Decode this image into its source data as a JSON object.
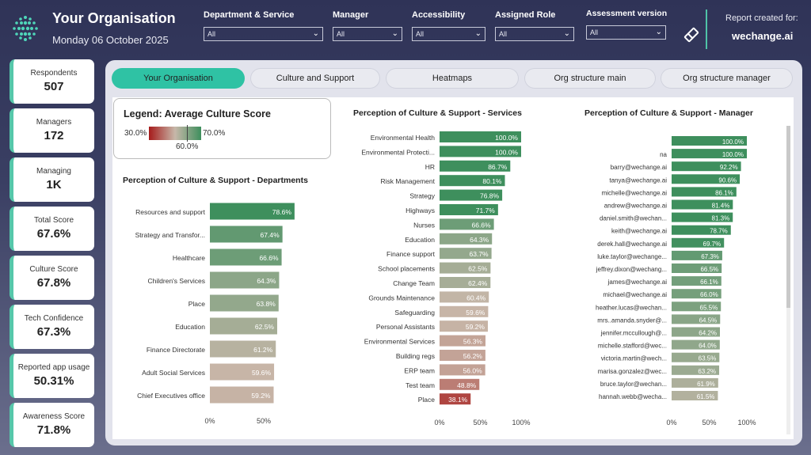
{
  "header": {
    "title": "Your Organisation",
    "date": "Monday 06 October 2025",
    "report_label": "Report created for:",
    "report_org": "wechange.ai"
  },
  "filters": [
    {
      "label": "Department & Service",
      "value": "All"
    },
    {
      "label": "Manager",
      "value": "All"
    },
    {
      "label": "Accessibility",
      "value": "All"
    },
    {
      "label": "Assigned Role",
      "value": "All"
    },
    {
      "label": "Assessment version",
      "value": "All"
    }
  ],
  "kpis": [
    {
      "label": "Respondents",
      "value": "507"
    },
    {
      "label": "Managers",
      "value": "172"
    },
    {
      "label": "Managing",
      "value": "1K"
    },
    {
      "label": "Total Score",
      "value": "67.6%"
    },
    {
      "label": "Culture Score",
      "value": "67.8%"
    },
    {
      "label": "Tech Confidence",
      "value": "67.3%"
    },
    {
      "label": "Reported app usage",
      "value": "50.31%"
    },
    {
      "label": "Awareness Score",
      "value": "71.8%"
    }
  ],
  "tabs": [
    {
      "label": "Your Organisation",
      "active": true
    },
    {
      "label": "Culture and Support",
      "active": false
    },
    {
      "label": "Heatmaps",
      "active": false
    },
    {
      "label": "Org structure main",
      "active": false
    },
    {
      "label": "Org structure manager",
      "active": false
    }
  ],
  "legend": {
    "title": "Legend: Average Culture Score",
    "min_label": "30.0%",
    "mid_label": "60.0%",
    "max_label": "70.0%"
  },
  "colors": {
    "accent": "#2fc2a4",
    "low": "#a61b1b",
    "mid": "#c7b7a9",
    "high": "#3e8f5d"
  },
  "chart_data": [
    {
      "type": "bar",
      "orientation": "horizontal",
      "title": "Perception of Culture & Support - Departments",
      "categories": [
        "Resources and support",
        "Strategy and Transfor...",
        "Healthcare",
        "Children's Services",
        "Place",
        "Education",
        "Finance Directorate",
        "Adult Social Services",
        "Chief Executives office"
      ],
      "values": [
        78.6,
        67.4,
        66.6,
        64.3,
        63.8,
        62.5,
        61.2,
        59.6,
        59.2
      ],
      "xlim": [
        0,
        100
      ],
      "xticks": [
        "0%",
        "50%"
      ]
    },
    {
      "type": "bar",
      "orientation": "horizontal",
      "title": "Perception of Culture & Support - Services",
      "categories": [
        "Environmental Health",
        "Environmental Protecti...",
        "HR",
        "Risk Management",
        "Strategy",
        "Highways",
        "Nurses",
        "Education",
        "Finance support",
        "School placements",
        "Change Team",
        "Grounds Maintenance",
        "Safeguarding",
        "Personal Assistants",
        "Environmental Services",
        "Building regs",
        "ERP team",
        "Test team",
        "Place"
      ],
      "values": [
        100.0,
        100.0,
        86.7,
        80.1,
        76.8,
        71.7,
        66.6,
        64.3,
        63.7,
        62.5,
        62.4,
        60.4,
        59.6,
        59.2,
        56.3,
        56.2,
        56.0,
        48.8,
        38.1
      ],
      "xlim": [
        0,
        100
      ],
      "xticks": [
        "0%",
        "50%",
        "100%"
      ]
    },
    {
      "type": "bar",
      "orientation": "horizontal",
      "title": "Perception of Culture & Support - Manager",
      "categories": [
        "",
        "na",
        "barry@wechange.ai",
        "tanya@wechange.ai",
        "michelle@wechange.ai",
        "andrew@wechange.ai",
        "daniel.smith@wechan...",
        "keith@wechange.ai",
        "derek.hall@wechange.ai",
        "luke.taylor@wechange...",
        "jeffrey.dixon@wechang...",
        "james@wechange.ai",
        "michael@wechange.ai",
        "heather.lucas@wechan...",
        "mrs..amanda.snyder@...",
        "jennifer.mccullough@...",
        "michelle.stafford@wec...",
        "victoria.martin@wech...",
        "marisa.gonzalez@wec...",
        "bruce.taylor@wechan...",
        "hannah.webb@wecha..."
      ],
      "values": [
        100.0,
        100.0,
        92.2,
        90.6,
        86.1,
        81.4,
        81.3,
        78.7,
        69.7,
        67.3,
        66.5,
        66.1,
        66.0,
        65.5,
        64.5,
        64.2,
        64.0,
        63.5,
        63.2,
        61.9,
        61.5
      ],
      "xlim": [
        0,
        100
      ],
      "xticks": [
        "0%",
        "50%",
        "100%"
      ]
    }
  ]
}
